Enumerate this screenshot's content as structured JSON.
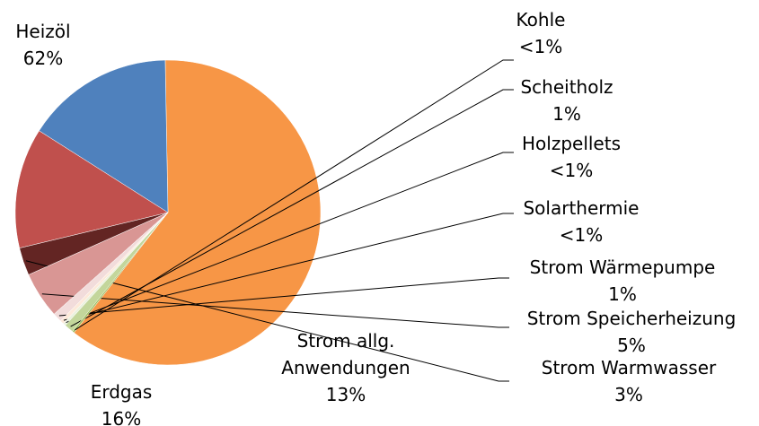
{
  "chart_data": {
    "type": "pie",
    "categories": [
      "Heizöl",
      "Erdgas",
      "Strom allg. Anwendungen",
      "Strom Warmwasser",
      "Strom Speicherheizung",
      "Strom Wärmepumpe",
      "Solarthermie",
      "Holzpellets",
      "Scheitholz",
      "Kohle"
    ],
    "values": [
      62,
      16,
      13,
      3,
      5,
      1,
      0.4,
      0.3,
      1,
      0.2
    ],
    "value_labels": [
      "62%",
      "16%",
      "13%",
      "3%",
      "5%",
      "1%",
      "<1%",
      "<1%",
      "1%",
      "<1%"
    ],
    "colors": [
      "#f79646",
      "#4f81bd",
      "#c0504d",
      "#632523",
      "#d99694",
      "#f2dcdb",
      "#fde9d9",
      "#ebf1de",
      "#c3d69b",
      "#9bbb59"
    ]
  }
}
